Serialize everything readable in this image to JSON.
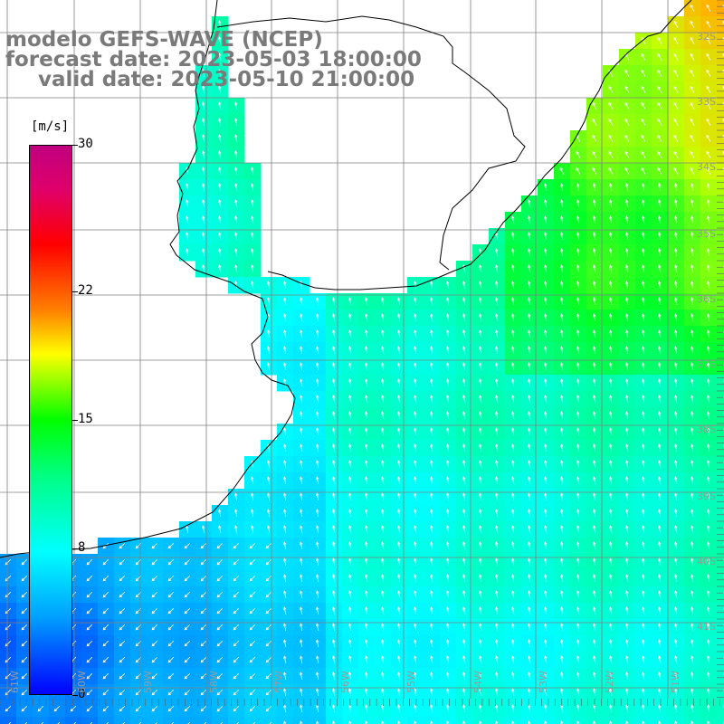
{
  "title": {
    "line1": "modelo GEFS-WAVE (NCEP)",
    "line2": "forecast date: 2023-05-03 18:00:00",
    "line3": "valid date: 2023-05-10 21:00:00"
  },
  "colorbar": {
    "unit": "[m/s]",
    "ticks": [
      "30",
      "22",
      "15",
      "8",
      "0"
    ],
    "tick_values": [
      30,
      22,
      15,
      8,
      0
    ],
    "min": 0,
    "max": 30,
    "colors": [
      "#0000ff",
      "#00a0ff",
      "#00ffff",
      "#00ff80",
      "#00ff00",
      "#ffff00",
      "#ff8000",
      "#ff0000",
      "#c0007f"
    ]
  },
  "map": {
    "lat_labels": [
      "32S",
      "33S",
      "34S",
      "35S",
      "36S",
      "37S",
      "38S",
      "39S",
      "40S",
      "41S"
    ],
    "lon_labels": [
      "61W",
      "60W",
      "59W",
      "58W",
      "57W",
      "56W",
      "55W",
      "54W",
      "53W",
      "52W",
      "51W"
    ],
    "coastline_color": "#000000",
    "grid_color": "#7f7f7f",
    "arrow_color": "#ffffff"
  }
}
